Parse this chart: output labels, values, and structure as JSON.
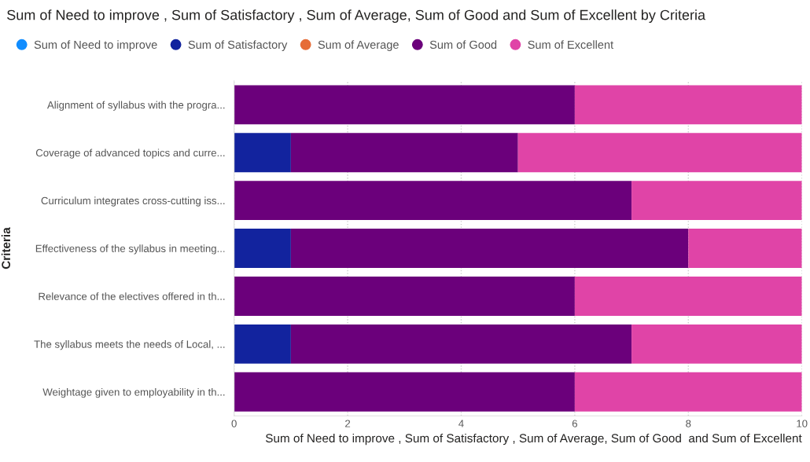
{
  "chart_data": {
    "type": "bar",
    "orientation": "horizontal",
    "stacked": true,
    "title": "Sum of Need to improve , Sum of Satisfactory , Sum of Average, Sum of Good and Sum of Excellent by Criteria",
    "xlabel": "Sum of Need to improve , Sum of Satisfactory , Sum of Average, Sum of Good  and Sum of Excellent",
    "ylabel": "Criteria",
    "categories": [
      "Alignment of syllabus with the progra...",
      "Coverage of advanced topics and curre...",
      "Curriculum integrates cross-cutting iss...",
      "Effectiveness of the syllabus in meeting...",
      "Relevance of the electives offered in th...",
      "The syllabus meets the needs of Local, ...",
      "Weightage given to employability in th..."
    ],
    "series": [
      {
        "name": "Sum of Need to improve",
        "color": "#118dff",
        "values": [
          0,
          0,
          0,
          0,
          0,
          0,
          0
        ]
      },
      {
        "name": "Sum of Satisfactory",
        "color": "#12239e",
        "values": [
          0,
          1,
          0,
          1,
          0,
          1,
          0
        ]
      },
      {
        "name": "Sum of Average",
        "color": "#e66c37",
        "values": [
          0,
          0,
          0,
          0,
          0,
          0,
          0
        ]
      },
      {
        "name": "Sum of Good",
        "color": "#6b007b",
        "values": [
          6,
          4,
          7,
          7,
          6,
          6,
          6
        ]
      },
      {
        "name": "Sum of Excellent",
        "color": "#e044a7",
        "values": [
          4,
          5,
          3,
          2,
          4,
          3,
          4
        ]
      }
    ],
    "xlim": [
      0,
      10
    ],
    "xticks": [
      0,
      2,
      4,
      6,
      8,
      10
    ],
    "grid": "x",
    "legend": "top left"
  }
}
